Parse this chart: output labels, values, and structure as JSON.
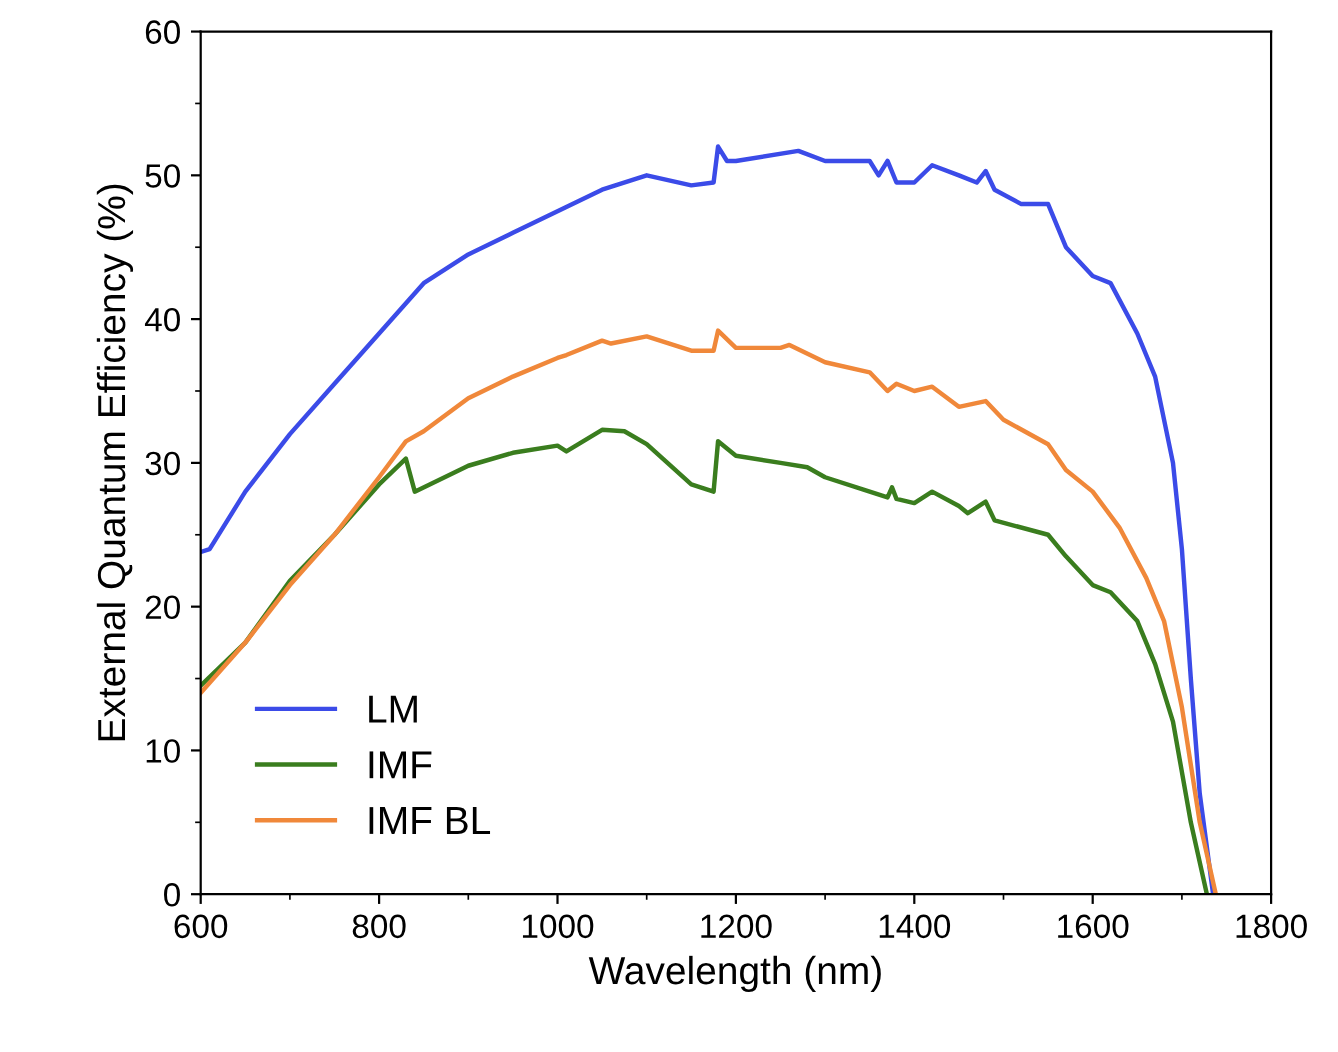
{
  "chart_data": {
    "type": "line",
    "xlabel": "Wavelength (nm)",
    "ylabel": "External Quantum Efficiency (%)",
    "xlim": [
      600,
      1800
    ],
    "xticks": [
      600,
      800,
      1000,
      1200,
      1400,
      1600,
      1800
    ],
    "ylim": [
      0,
      60
    ],
    "yticks": [
      0,
      10,
      20,
      30,
      40,
      50,
      60
    ],
    "grid": false,
    "legend": "bottom left",
    "marker": "none",
    "line_style": "solid",
    "series": [
      {
        "name": "LM",
        "color": "#3b4be8",
        "x": [
          600,
          610,
          650,
          700,
          750,
          800,
          850,
          900,
          950,
          1000,
          1050,
          1100,
          1150,
          1175,
          1180,
          1190,
          1200,
          1270,
          1300,
          1350,
          1360,
          1370,
          1380,
          1400,
          1420,
          1450,
          1470,
          1480,
          1490,
          1520,
          1550,
          1570,
          1600,
          1620,
          1650,
          1670,
          1690,
          1700,
          1710,
          1720,
          1735
        ],
        "values": [
          23.8,
          24,
          28,
          32,
          35.5,
          39,
          42.5,
          44.5,
          46,
          47.5,
          49,
          50,
          49.3,
          49.5,
          52,
          51,
          51,
          51.7,
          51,
          51,
          50,
          51,
          49.5,
          49.5,
          50.7,
          50,
          49.5,
          50.3,
          49,
          48,
          48,
          45,
          43,
          42.5,
          39,
          36,
          30,
          24,
          15,
          7,
          0
        ]
      },
      {
        "name": "IMF",
        "color": "#3a7d1e",
        "x": [
          600,
          650,
          700,
          750,
          800,
          830,
          840,
          900,
          950,
          1000,
          1010,
          1050,
          1075,
          1100,
          1150,
          1175,
          1180,
          1200,
          1250,
          1280,
          1300,
          1350,
          1370,
          1375,
          1380,
          1400,
          1420,
          1450,
          1460,
          1480,
          1490,
          1550,
          1570,
          1600,
          1620,
          1650,
          1670,
          1690,
          1710,
          1728
        ],
        "values": [
          14.5,
          17.5,
          21.8,
          25,
          28.5,
          30.3,
          28,
          29.8,
          30.7,
          31.2,
          30.8,
          32.3,
          32.2,
          31.3,
          28.5,
          28,
          31.5,
          30.5,
          30,
          29.7,
          29,
          28,
          27.6,
          28.3,
          27.5,
          27.2,
          28,
          27,
          26.5,
          27.3,
          26,
          25,
          23.5,
          21.5,
          21,
          19,
          16,
          12,
          5,
          0
        ]
      },
      {
        "name": "IMF BL",
        "color": "#f0883a",
        "x": [
          600,
          650,
          700,
          750,
          800,
          830,
          850,
          900,
          950,
          1000,
          1010,
          1050,
          1060,
          1100,
          1150,
          1175,
          1180,
          1200,
          1250,
          1260,
          1300,
          1350,
          1370,
          1380,
          1400,
          1420,
          1450,
          1480,
          1500,
          1550,
          1570,
          1600,
          1630,
          1660,
          1680,
          1700,
          1720,
          1738
        ],
        "values": [
          14,
          17.5,
          21.5,
          25,
          29,
          31.5,
          32.2,
          34.5,
          36,
          37.3,
          37.5,
          38.5,
          38.3,
          38.8,
          37.8,
          37.8,
          39.2,
          38,
          38,
          38.2,
          37,
          36.3,
          35,
          35.5,
          35,
          35.3,
          33.9,
          34.3,
          33,
          31.3,
          29.5,
          28,
          25.5,
          22,
          19,
          13,
          5,
          0
        ]
      }
    ]
  }
}
